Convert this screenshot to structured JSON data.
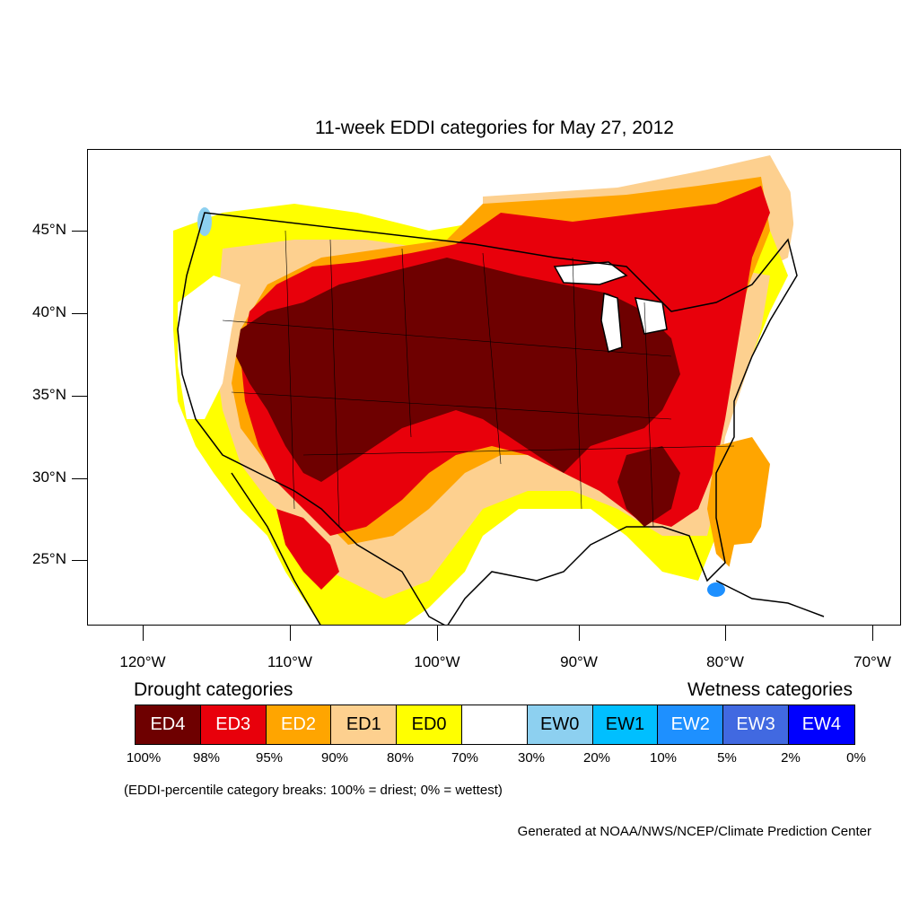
{
  "title": "11-week EDDI categories for May 27, 2012",
  "map": {
    "lat_labels": [
      "45°N",
      "40°N",
      "35°N",
      "30°N",
      "25°N"
    ],
    "lon_labels": [
      "120°W",
      "110°W",
      "100°W",
      "90°W",
      "80°W",
      "70°W"
    ]
  },
  "legend": {
    "drought_heading": "Drought categories",
    "wetness_heading": "Wetness categories",
    "categories": [
      {
        "label": "ED4",
        "color": "#6e0000",
        "text_color": "#ffffff"
      },
      {
        "label": "ED3",
        "color": "#e8000b",
        "text_color": "#ffffff"
      },
      {
        "label": "ED2",
        "color": "#ffa500",
        "text_color": "#ffffff"
      },
      {
        "label": "ED1",
        "color": "#fdd08f",
        "text_color": "#000000"
      },
      {
        "label": "ED0",
        "color": "#ffff00",
        "text_color": "#000000"
      },
      {
        "label": "",
        "color": "#ffffff",
        "text_color": "#000000"
      },
      {
        "label": "EW0",
        "color": "#8dd0f0",
        "text_color": "#000000"
      },
      {
        "label": "EW1",
        "color": "#00bfff",
        "text_color": "#000000"
      },
      {
        "label": "EW2",
        "color": "#1e90ff",
        "text_color": "#ffffff"
      },
      {
        "label": "EW3",
        "color": "#4169e1",
        "text_color": "#ffffff"
      },
      {
        "label": "EW4",
        "color": "#0000ff",
        "text_color": "#ffffff"
      }
    ],
    "percentiles": [
      "100%",
      "98%",
      "95%",
      "90%",
      "80%",
      "70%",
      "30%",
      "20%",
      "10%",
      "5%",
      "2%",
      "0%"
    ]
  },
  "note": "(EDDI-percentile category breaks: 100% = driest; 0% = wettest)",
  "credit": "Generated at NOAA/NWS/NCEP/Climate Prediction Center"
}
